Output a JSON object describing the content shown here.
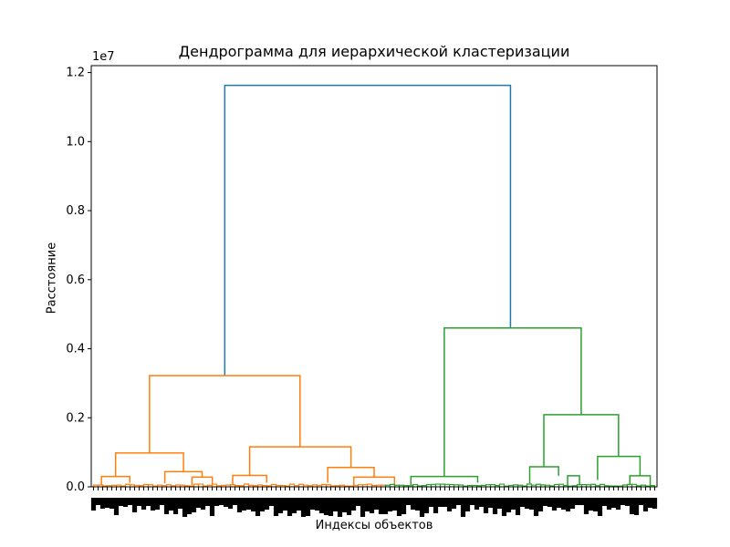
{
  "chart_data": {
    "type": "dendrogram",
    "title": "Дендрограмма для иерархической кластеризации",
    "xlabel": "Индексы объектов",
    "ylabel": "Расстояние",
    "y_exponent_label": "1e7",
    "ylim": [
      0,
      1.22
    ],
    "y_ticks": [
      "0.0",
      "0.2",
      "0.4",
      "0.6",
      "0.8",
      "1.0",
      "1.2"
    ],
    "y_tick_values": [
      0.0,
      0.2,
      0.4,
      0.6,
      0.8,
      1.0,
      1.2
    ],
    "leaf_count": 124,
    "colors": {
      "orange": "#ff7f0e",
      "green": "#2ca02c",
      "blue": "#1f77b4"
    },
    "merges": [
      {
        "name": "root",
        "left_pos": 0.236,
        "right_pos": 0.741,
        "height": 1.163,
        "color": "blue",
        "left_child_height": 0.322,
        "right_child_height": 0.46
      },
      {
        "name": "orange-top",
        "left_pos": 0.103,
        "right_pos": 0.369,
        "height": 0.322,
        "color": "orange",
        "left_child_height": 0.098,
        "right_child_height": 0.116
      },
      {
        "name": "orange-left",
        "left_pos": 0.043,
        "right_pos": 0.163,
        "height": 0.098,
        "color": "orange",
        "left_child_height": 0.03,
        "right_child_height": 0.044
      },
      {
        "name": "orange-right",
        "left_pos": 0.28,
        "right_pos": 0.459,
        "height": 0.116,
        "color": "orange",
        "left_child_height": 0.033,
        "right_child_height": 0.056
      },
      {
        "name": "green-top",
        "left_pos": 0.624,
        "right_pos": 0.866,
        "height": 0.46,
        "color": "green",
        "left_child_height": 0.03,
        "right_child_height": 0.209
      },
      {
        "name": "green-right",
        "left_pos": 0.8,
        "right_pos": 0.932,
        "height": 0.209,
        "color": "green",
        "left_child_height": 0.058,
        "right_child_height": 0.088
      },
      {
        "name": "green-right-b",
        "left_pos": 0.895,
        "right_pos": 0.97,
        "height": 0.088,
        "color": "green",
        "left_child_height": 0.02,
        "right_child_height": 0.032
      },
      {
        "name": "green-right-a",
        "left_pos": 0.775,
        "right_pos": 0.826,
        "height": 0.058,
        "color": "green",
        "left_child_height": 0.01,
        "right_child_height": 0.032
      },
      {
        "name": "green-left",
        "left_pos": 0.565,
        "right_pos": 0.683,
        "height": 0.03,
        "color": "green",
        "left_child_height": 0.005,
        "right_child_height": 0.012
      },
      {
        "name": "o1",
        "left_pos": 0.018,
        "right_pos": 0.068,
        "height": 0.03,
        "color": "orange",
        "left_child_height": 0.005,
        "right_child_height": 0.012
      },
      {
        "name": "o2",
        "left_pos": 0.13,
        "right_pos": 0.196,
        "height": 0.044,
        "color": "orange",
        "left_child_height": 0.01,
        "right_child_height": 0.028
      },
      {
        "name": "o3",
        "left_pos": 0.25,
        "right_pos": 0.31,
        "height": 0.033,
        "color": "orange",
        "left_child_height": 0.005,
        "right_child_height": 0.012
      },
      {
        "name": "o4",
        "left_pos": 0.418,
        "right_pos": 0.5,
        "height": 0.056,
        "color": "orange",
        "left_child_height": 0.012,
        "right_child_height": 0.028
      },
      {
        "name": "o5",
        "left_pos": 0.178,
        "right_pos": 0.214,
        "height": 0.028,
        "color": "orange",
        "left_child_height": 0.005,
        "right_child_height": 0.005
      },
      {
        "name": "o6",
        "left_pos": 0.464,
        "right_pos": 0.536,
        "height": 0.028,
        "color": "orange",
        "left_child_height": 0.005,
        "right_child_height": 0.005
      },
      {
        "name": "g1",
        "left_pos": 0.842,
        "right_pos": 0.863,
        "height": 0.032,
        "color": "green",
        "left_child_height": 0.005,
        "right_child_height": 0.005
      },
      {
        "name": "g2",
        "left_pos": 0.952,
        "right_pos": 0.988,
        "height": 0.032,
        "color": "green",
        "left_child_height": 0.005,
        "right_child_height": 0.005
      }
    ]
  }
}
